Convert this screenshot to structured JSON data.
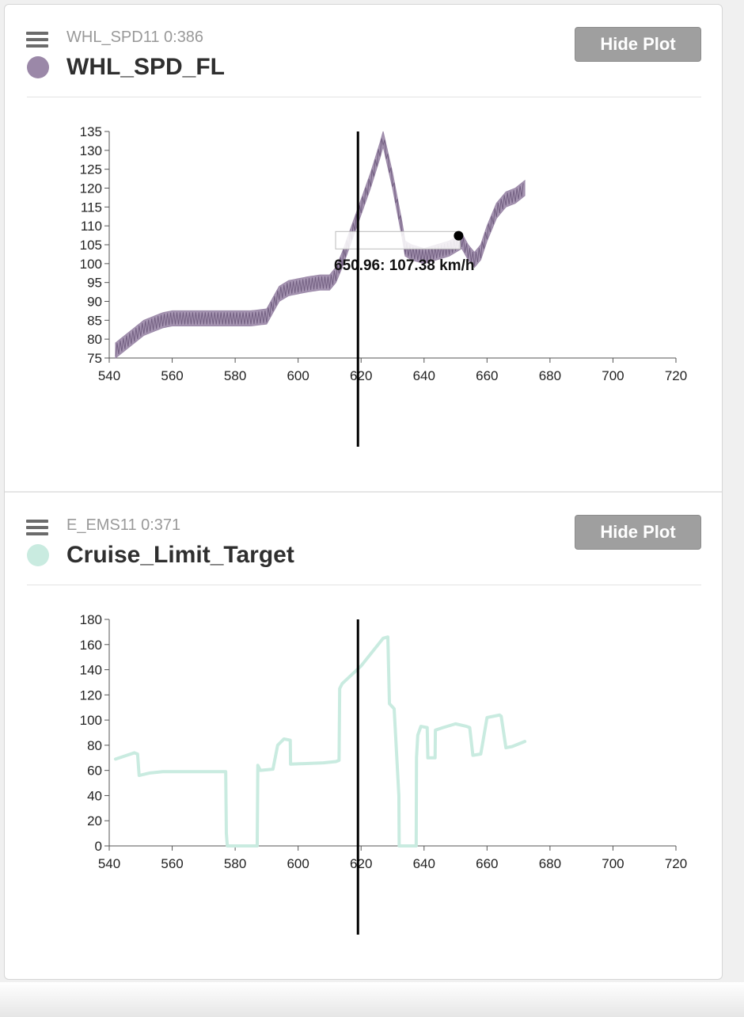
{
  "panels": [
    {
      "message": "WHL_SPD11 0:386",
      "signal": "WHL_SPD_FL",
      "color": "#9b88a8",
      "button": "Hide Plot",
      "tooltip": "650.96: 107.38 km/h"
    },
    {
      "message": "E_EMS11 0:371",
      "signal": "Cruise_Limit_Target",
      "color": "#c9ebe0",
      "button": "Hide Plot"
    }
  ],
  "chart_data": [
    {
      "type": "line",
      "title": "WHL_SPD_FL",
      "xlabel": "",
      "ylabel": "",
      "xlim": [
        540,
        720
      ],
      "ylim": [
        75,
        135
      ],
      "xticks": [
        540,
        560,
        580,
        600,
        620,
        640,
        660,
        680,
        700,
        720
      ],
      "yticks": [
        75,
        80,
        85,
        90,
        95,
        100,
        105,
        110,
        115,
        120,
        125,
        130,
        135
      ],
      "cursor_x": 619,
      "hover_point": {
        "x": 650.96,
        "y": 107.38,
        "unit": "km/h"
      },
      "series": [
        {
          "name": "WHL_SPD_FL",
          "color": "#9b88a8",
          "band": 2,
          "x": [
            542,
            545,
            548,
            551,
            554,
            557,
            560,
            565,
            570,
            575,
            580,
            585,
            590,
            592,
            594,
            597,
            600,
            603,
            607,
            610,
            612,
            614,
            617,
            620,
            623,
            626,
            627,
            630,
            633,
            634,
            636,
            640,
            644,
            648,
            652,
            654,
            656,
            658,
            660,
            663,
            666,
            669,
            672
          ],
          "y": [
            77,
            79,
            81,
            83,
            84,
            85,
            85.5,
            85.5,
            85.5,
            85.5,
            85.5,
            85.5,
            86,
            89,
            92,
            93.5,
            94,
            94.5,
            95,
            95,
            97,
            101,
            108,
            115,
            122,
            130,
            133,
            122,
            109,
            104,
            103,
            102,
            103,
            104,
            106,
            103,
            101,
            103,
            108,
            114,
            117,
            118,
            120
          ]
        }
      ]
    },
    {
      "type": "line",
      "title": "Cruise_Limit_Target",
      "xlabel": "",
      "ylabel": "",
      "xlim": [
        540,
        720
      ],
      "ylim": [
        0,
        180
      ],
      "xticks": [
        540,
        560,
        580,
        600,
        620,
        640,
        660,
        680,
        700,
        720
      ],
      "yticks": [
        0,
        20,
        40,
        60,
        80,
        100,
        120,
        140,
        160,
        180
      ],
      "cursor_x": 619,
      "series": [
        {
          "name": "Cruise_Limit_Target",
          "color": "#c9ebe0",
          "x": [
            542,
            548,
            549,
            549.5,
            553,
            557,
            563,
            577,
            577.2,
            577.5,
            587,
            587.2,
            588,
            592,
            593.5,
            595.5,
            597.5,
            597.6,
            608,
            612,
            613,
            613.2,
            614,
            620,
            627,
            628.5,
            629,
            630.5,
            632,
            632.1,
            637.5,
            637.6,
            638,
            639,
            641,
            641.2,
            643.5,
            643.6,
            646,
            650,
            653.5,
            654.5,
            655.5,
            658,
            658.5,
            660,
            664,
            664.5,
            666,
            668,
            672
          ],
          "y": [
            69,
            74,
            73,
            56,
            58,
            59,
            59,
            59,
            10,
            0,
            0,
            64,
            60,
            61,
            80,
            85,
            84,
            65,
            66,
            67,
            68,
            125,
            129,
            143,
            165,
            166,
            113,
            109,
            40,
            0,
            0,
            70,
            88,
            95,
            94,
            70,
            70,
            92,
            94,
            97,
            95,
            94,
            72,
            73,
            80,
            102,
            104,
            103,
            78,
            79,
            83
          ]
        }
      ]
    }
  ]
}
